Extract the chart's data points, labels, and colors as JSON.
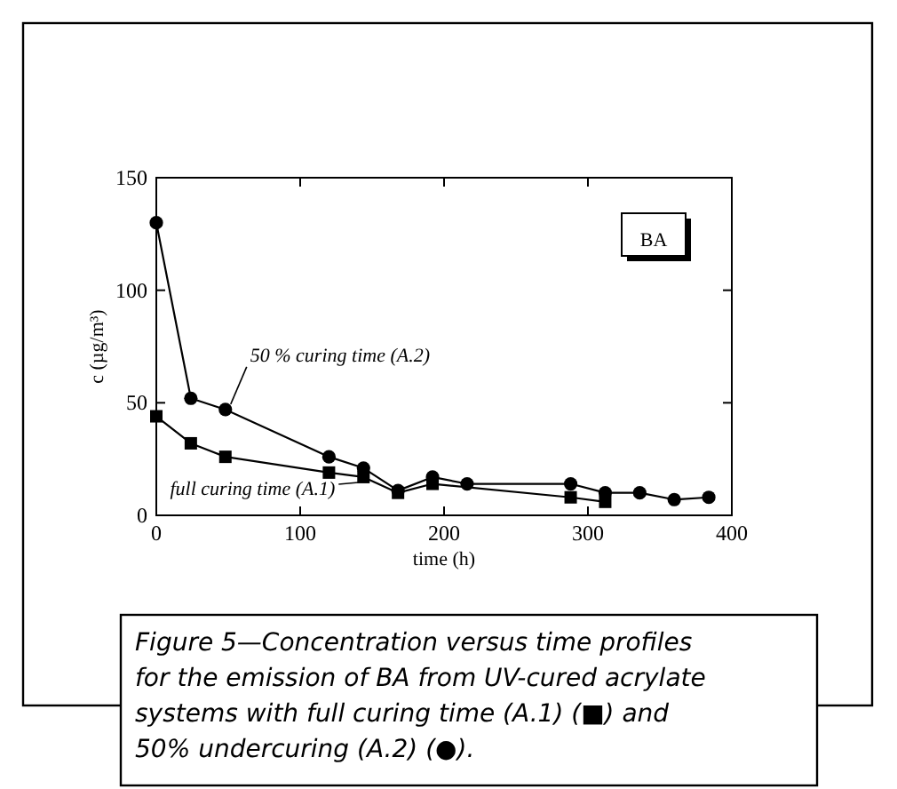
{
  "chart_data": {
    "type": "line",
    "xlabel": "time (h)",
    "ylabel": "c (µg/m³)",
    "xlim": [
      0,
      400
    ],
    "ylim": [
      0,
      150
    ],
    "xticks": [
      0,
      100,
      200,
      300,
      400
    ],
    "yticks": [
      0,
      50,
      100,
      150
    ],
    "grid": false,
    "line_style": "solid",
    "series": [
      {
        "color": "#000000",
        "marker": "square",
        "x": [
          0,
          24,
          48,
          120,
          144,
          168,
          192,
          288,
          312
        ],
        "values": [
          44,
          32,
          26,
          19,
          17,
          10,
          14,
          8,
          6
        ]
      },
      {
        "color": "#000000",
        "marker": "circle",
        "x": [
          0,
          24,
          48,
          120,
          144,
          168,
          192,
          216,
          288,
          312,
          336,
          360,
          384
        ],
        "values": [
          130,
          52,
          47,
          26,
          21,
          11,
          17,
          14,
          14,
          10,
          10,
          7,
          8
        ]
      }
    ],
    "annotations": [
      {
        "text": "50 % curing time (A.2)",
        "x": 48,
        "y": 47
      },
      {
        "text": "full curing time (A.1)",
        "x": 144,
        "y": 17
      },
      "BA",
      "Figure 5—Concentration versus time profiles for the emission of BA from UV-cured acrylate systems with full curing time (A.1) (■) and 50% undercuring (A.2) (●)."
    ]
  }
}
